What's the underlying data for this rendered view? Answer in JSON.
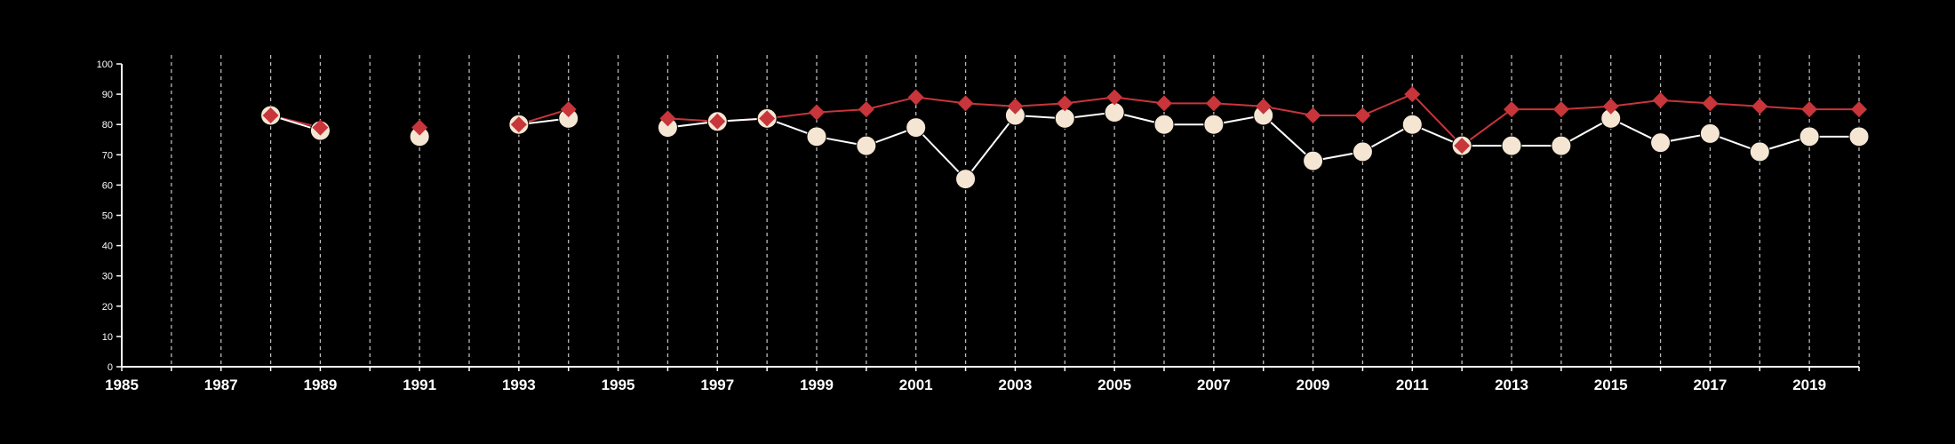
{
  "chart_data": {
    "type": "line",
    "title": "",
    "xlabel": "",
    "ylabel": "",
    "xlim": [
      1985,
      2020
    ],
    "ylim": [
      0,
      100
    ],
    "y_ticks": [
      "0",
      "10",
      "20",
      "30",
      "40",
      "50",
      "60",
      "70",
      "80",
      "90",
      "100"
    ],
    "x_tick_labels": [
      "1985",
      "1987",
      "1989",
      "1991",
      "1993",
      "1995",
      "1997",
      "1999",
      "2001",
      "2003",
      "2005",
      "2007",
      "2009",
      "2011",
      "2013",
      "2015",
      "2017",
      "2019"
    ],
    "grid": "vertical dashed lines at every year",
    "colors": {
      "background": "#000000",
      "axis": "#ffffff",
      "grid": "#bbbbbb"
    },
    "series": [
      {
        "color": "#c8353a",
        "marker": "diamond",
        "x": [
          1988,
          1989,
          1991,
          1993,
          1994,
          1996,
          1997,
          1998,
          1999,
          2000,
          2001,
          2002,
          2003,
          2004,
          2005,
          2006,
          2007,
          2008,
          2009,
          2010,
          2011,
          2012,
          2013,
          2014,
          2015,
          2016,
          2017,
          2018,
          2019,
          2020
        ],
        "values": [
          83,
          79,
          79,
          80,
          85,
          82,
          81,
          82,
          84,
          85,
          89,
          87,
          86,
          87,
          89,
          87,
          87,
          86,
          83,
          83,
          90,
          73,
          85,
          85,
          86,
          88,
          87,
          86,
          85,
          85
        ]
      },
      {
        "color": "#f5e6d3",
        "line_color": "#ffffff",
        "marker": "circle",
        "x": [
          1988,
          1989,
          1991,
          1993,
          1994,
          1996,
          1997,
          1998,
          1999,
          2000,
          2001,
          2002,
          2003,
          2004,
          2005,
          2006,
          2007,
          2008,
          2009,
          2010,
          2011,
          2012,
          2013,
          2014,
          2015,
          2016,
          2017,
          2018,
          2019,
          2020
        ],
        "values": [
          83,
          78,
          76,
          80,
          82,
          79,
          81,
          82,
          76,
          73,
          79,
          62,
          83,
          82,
          84,
          80,
          80,
          83,
          68,
          71,
          80,
          73,
          73,
          73,
          82,
          74,
          77,
          71,
          76,
          76
        ]
      }
    ]
  }
}
